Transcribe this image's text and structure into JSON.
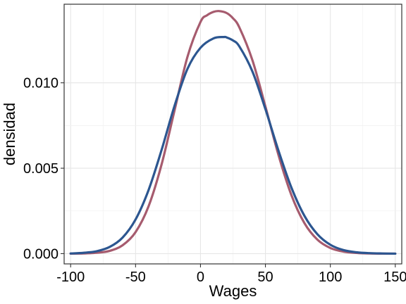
{
  "chart_data": {
    "type": "line",
    "title": "",
    "xlabel": "Wages",
    "ylabel": "densidad",
    "xlim": [
      -105,
      155
    ],
    "ylim": [
      -0.0006,
      0.0146
    ],
    "xticks": [
      -100,
      -50,
      0,
      50,
      100,
      150
    ],
    "xtick_labels": [
      "-100",
      "-50",
      "0",
      "50",
      "100",
      "150"
    ],
    "yticks": [
      0.0,
      0.005,
      0.01
    ],
    "ytick_labels": [
      "0.000",
      "0.005",
      "0.010"
    ],
    "grid": true,
    "legend": "none",
    "series": [
      {
        "color": "#A65B6E",
        "x": [
          -100,
          -90,
          -80,
          -70,
          -60,
          -50,
          -40,
          -30,
          -20,
          -10,
          0,
          5,
          10,
          14,
          20,
          25,
          30,
          40,
          50,
          60,
          70,
          80,
          90,
          100,
          110,
          120,
          130,
          140,
          150
        ],
        "y": [
          0.0,
          1e-05,
          5e-05,
          0.00016,
          0.00049,
          0.00126,
          0.00277,
          0.00521,
          0.00838,
          0.01153,
          0.01356,
          0.01395,
          0.01415,
          0.0142,
          0.01409,
          0.01378,
          0.01323,
          0.01132,
          0.00861,
          0.00579,
          0.00343,
          0.00179,
          0.00082,
          0.00033,
          0.00012,
          4e-05,
          1e-05,
          0.0,
          0.0
        ]
      },
      {
        "color": "#2C5690",
        "x": [
          -100,
          -90,
          -80,
          -70,
          -60,
          -50,
          -40,
          -30,
          -20,
          -10,
          0,
          10,
          18,
          20,
          25,
          30,
          40,
          50,
          60,
          70,
          80,
          90,
          100,
          110,
          120,
          130,
          140,
          150
        ],
        "y": [
          1e-05,
          5e-05,
          0.00014,
          0.00039,
          0.00094,
          0.002,
          0.00372,
          0.00606,
          0.00865,
          0.01082,
          0.01205,
          0.0126,
          0.01268,
          0.01266,
          0.01248,
          0.01212,
          0.01066,
          0.00846,
          0.00604,
          0.00387,
          0.00222,
          0.00114,
          0.00052,
          0.00021,
          8e-05,
          3e-05,
          1e-05,
          0.0
        ]
      }
    ]
  }
}
